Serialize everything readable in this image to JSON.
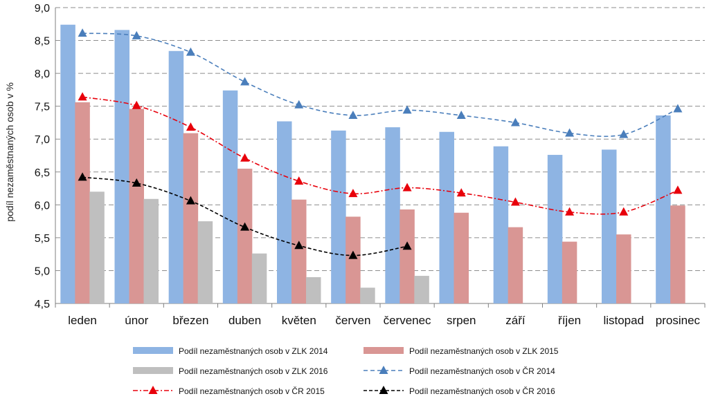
{
  "chart_data": {
    "type": "bar",
    "title": "",
    "xlabel": "",
    "ylabel": "podíl nezaměstnaných osob v %",
    "ylim": [
      4.5,
      9.0
    ],
    "yticks": [
      "4,5",
      "5,0",
      "5,5",
      "6,0",
      "6,5",
      "7,0",
      "7,5",
      "8,0",
      "8,5",
      "9,0"
    ],
    "grid": true,
    "legend_position": "bottom",
    "categories": [
      "leden",
      "únor",
      "březen",
      "duben",
      "květen",
      "červen",
      "červenec",
      "srpen",
      "září",
      "říjen",
      "listopad",
      "prosinec"
    ],
    "series": [
      {
        "name": "Podíl nezaměstnaných osob v ZLK 2014",
        "kind": "bar",
        "color": "#8eb4e3",
        "values": [
          8.74,
          8.66,
          8.34,
          7.74,
          7.27,
          7.13,
          7.18,
          7.11,
          6.89,
          6.76,
          6.84,
          7.36
        ]
      },
      {
        "name": "Podíl nezaměstnaných osob v ZLK 2015",
        "kind": "bar",
        "color": "#d99694",
        "values": [
          7.56,
          7.46,
          7.09,
          6.55,
          6.08,
          5.82,
          5.93,
          5.88,
          5.66,
          5.44,
          5.55,
          5.99
        ]
      },
      {
        "name": "Podíl nezaměstnaných osob v ZLK 2016",
        "kind": "bar",
        "color": "#bfbfbf",
        "values": [
          6.2,
          6.09,
          5.75,
          5.26,
          4.9,
          4.74,
          4.92,
          null,
          null,
          null,
          null,
          null
        ]
      },
      {
        "name": "Podíl nezaměstnaných osob v ČR 2014",
        "kind": "line",
        "color": "#4a7ebb",
        "dash": "6,4",
        "values": [
          8.61,
          8.57,
          8.32,
          7.87,
          7.52,
          7.36,
          7.44,
          7.36,
          7.25,
          7.09,
          7.07,
          7.46
        ]
      },
      {
        "name": "Podíl nezaměstnaných osob v ČR 2015",
        "kind": "line",
        "color": "#e8000b",
        "dash": "7,3,2,3",
        "values": [
          7.64,
          7.51,
          7.18,
          6.71,
          6.36,
          6.17,
          6.26,
          6.18,
          6.04,
          5.89,
          5.89,
          6.22
        ]
      },
      {
        "name": "Podíl nezaměstnaných osob v ČR 2016",
        "kind": "line",
        "color": "#000000",
        "dash": "5,3",
        "values": [
          6.42,
          6.33,
          6.06,
          5.66,
          5.38,
          5.23,
          5.37,
          null,
          null,
          null,
          null,
          null
        ]
      }
    ]
  }
}
